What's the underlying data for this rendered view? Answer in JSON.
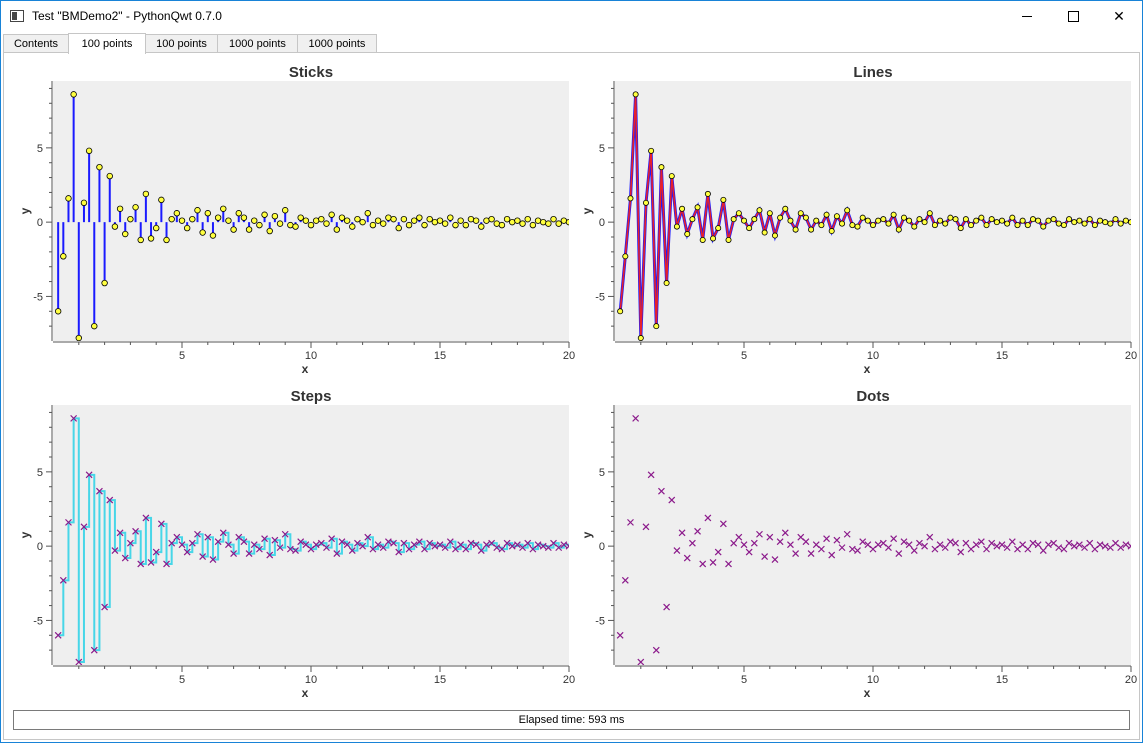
{
  "window": {
    "title": "Test \"BMDemo2\" - PythonQwt 0.7.0"
  },
  "tabs": [
    {
      "label": "Contents",
      "active": false
    },
    {
      "label": "100 points",
      "active": true
    },
    {
      "label": "100 points",
      "active": false
    },
    {
      "label": "1000 points",
      "active": false
    },
    {
      "label": "1000 points",
      "active": false
    }
  ],
  "status": {
    "text": "Elapsed time: 593 ms"
  },
  "colors": {
    "canvas": "#efefef",
    "stick": "#1a1aff",
    "marker_fill": "#ffff40",
    "marker_edge": "#000000",
    "line": "#e8202a",
    "steps": "#47d6e8",
    "dots": "#8b1a8b"
  },
  "chart_data": [
    {
      "type": "scatter",
      "title": "Sticks",
      "xlabel": "x",
      "ylabel": "y",
      "xlim": [
        0,
        20
      ],
      "ylim": [
        -8,
        9.5
      ],
      "xticks": [
        "5",
        "10",
        "15",
        "20"
      ],
      "yticks": [
        "-5",
        "0",
        "5"
      ],
      "grid": false,
      "series": [
        {
          "style": "sticks",
          "x": [
            0.2,
            0.4,
            0.6,
            0.8,
            1.0,
            1.2,
            1.4,
            1.6,
            1.8,
            2.0,
            2.2,
            2.4,
            2.6,
            2.8,
            3.0,
            3.2,
            3.4,
            3.6,
            3.8,
            4.0,
            4.2,
            4.4,
            4.6,
            4.8,
            5.0,
            5.2,
            5.4,
            5.6,
            5.8,
            6.0,
            6.2,
            6.4,
            6.6,
            6.8,
            7.0,
            7.2,
            7.4,
            7.6,
            7.8,
            8.0,
            8.2,
            8.4,
            8.6,
            8.8,
            9.0,
            9.2,
            9.4,
            9.6,
            9.8,
            10.0,
            10.2,
            10.4,
            10.6,
            10.8,
            11.0,
            11.2,
            11.4,
            11.6,
            11.8,
            12.0,
            12.2,
            12.4,
            12.6,
            12.8,
            13.0,
            13.2,
            13.4,
            13.6,
            13.8,
            14.0,
            14.2,
            14.4,
            14.6,
            14.8,
            15.0,
            15.2,
            15.4,
            15.6,
            15.8,
            16.0,
            16.2,
            16.4,
            16.6,
            16.8,
            17.0,
            17.2,
            17.4,
            17.6,
            17.8,
            18.0,
            18.2,
            18.4,
            18.6,
            18.8,
            19.0,
            19.2,
            19.4,
            19.6,
            19.8,
            20.0
          ],
          "y": [
            -6.0,
            -2.3,
            1.6,
            8.6,
            -7.8,
            1.3,
            4.8,
            -7.0,
            3.7,
            -4.1,
            3.1,
            -0.3,
            0.9,
            -0.8,
            0.2,
            1.0,
            -1.2,
            1.9,
            -1.1,
            -0.4,
            1.5,
            -1.2,
            0.2,
            0.6,
            0.1,
            -0.4,
            0.2,
            0.8,
            -0.7,
            0.6,
            -0.9,
            0.3,
            0.9,
            0.1,
            -0.5,
            0.6,
            0.3,
            -0.5,
            0.1,
            -0.2,
            0.5,
            -0.6,
            0.4,
            -0.1,
            0.8,
            -0.2,
            -0.3,
            0.3,
            0.1,
            -0.2,
            0.1,
            0.2,
            -0.1,
            0.5,
            -0.5,
            0.3,
            0.1,
            -0.3,
            0.2,
            0.0,
            0.6,
            -0.2,
            0.1,
            -0.1,
            0.3,
            0.2,
            -0.4,
            0.2,
            -0.2,
            0.1,
            0.3,
            -0.2,
            0.2,
            0.0,
            0.1,
            -0.1,
            0.3,
            -0.2,
            0.1,
            -0.2,
            0.2,
            0.1,
            -0.3,
            0.1,
            0.2,
            -0.1,
            -0.2,
            0.2,
            0.0,
            0.1,
            -0.1,
            0.2,
            -0.2,
            0.1,
            0.0,
            -0.1,
            0.2,
            -0.1,
            0.1,
            0.0
          ]
        }
      ]
    },
    {
      "type": "line",
      "title": "Lines",
      "xlabel": "x",
      "ylabel": "y",
      "xlim": [
        0,
        20
      ],
      "ylim": [
        -8,
        9.5
      ],
      "xticks": [
        "5",
        "10",
        "15",
        "20"
      ],
      "yticks": [
        "-5",
        "0",
        "5"
      ],
      "grid": false,
      "series": [
        {
          "style": "lines",
          "ref": "same data as Sticks"
        }
      ]
    },
    {
      "type": "line",
      "title": "Steps",
      "xlabel": "x",
      "ylabel": "y",
      "xlim": [
        0,
        20
      ],
      "ylim": [
        -8,
        9.5
      ],
      "xticks": [
        "5",
        "10",
        "15",
        "20"
      ],
      "yticks": [
        "-5",
        "0",
        "5"
      ],
      "grid": false,
      "series": [
        {
          "style": "steps",
          "ref": "same data as Sticks"
        }
      ]
    },
    {
      "type": "scatter",
      "title": "Dots",
      "xlabel": "x",
      "ylabel": "y",
      "xlim": [
        0,
        20
      ],
      "ylim": [
        -8,
        9.5
      ],
      "xticks": [
        "5",
        "10",
        "15",
        "20"
      ],
      "yticks": [
        "-5",
        "0",
        "5"
      ],
      "grid": false,
      "series": [
        {
          "style": "dots",
          "ref": "same data as Sticks"
        }
      ]
    }
  ]
}
